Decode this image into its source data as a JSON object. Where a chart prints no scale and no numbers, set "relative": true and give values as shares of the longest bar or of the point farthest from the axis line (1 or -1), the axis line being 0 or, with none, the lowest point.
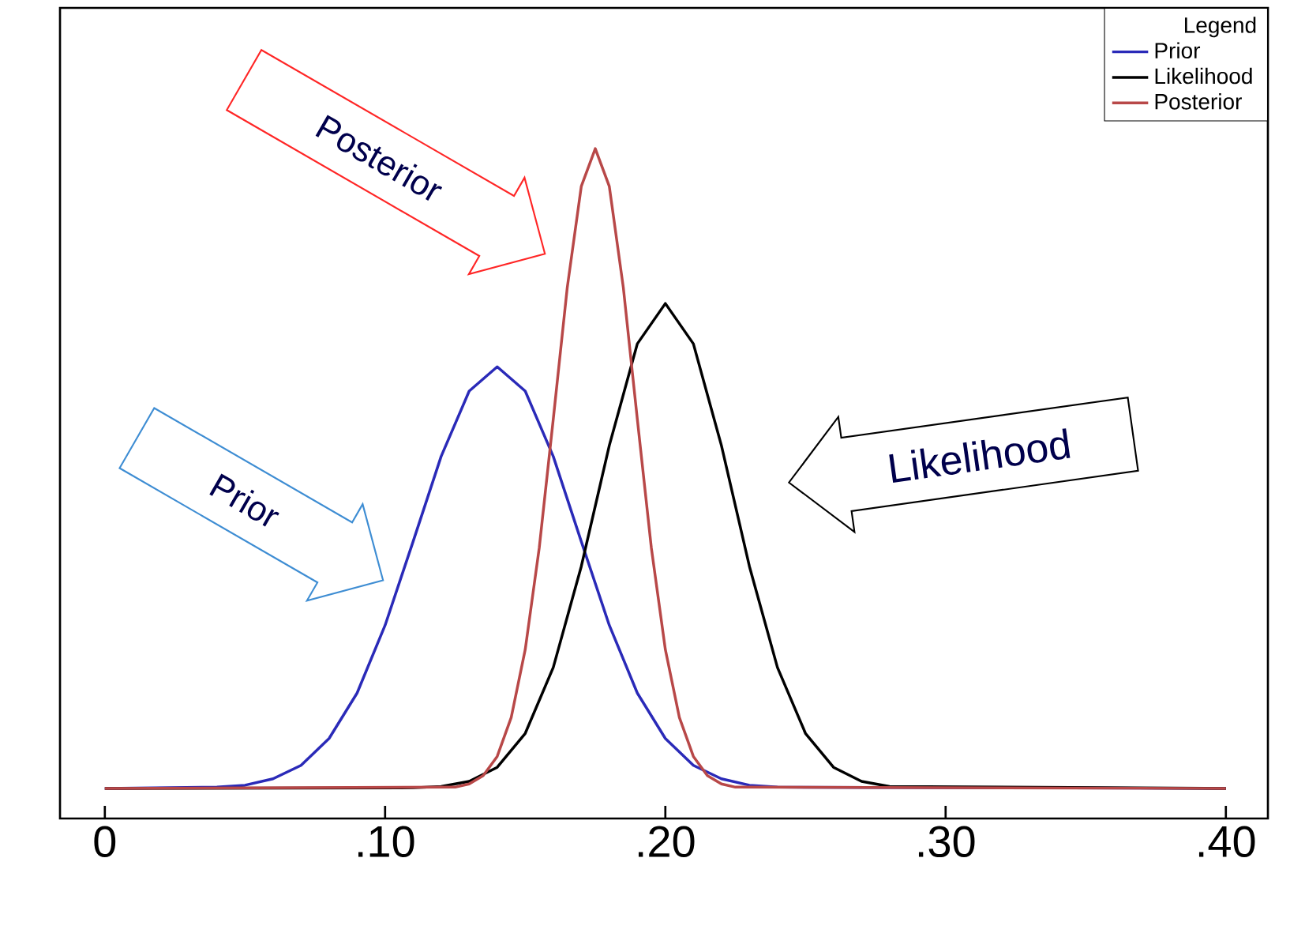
{
  "chart_data": {
    "type": "line",
    "relative": true,
    "legend_title": "Legend",
    "legend": "top right",
    "xlim": [
      -0.016,
      0.415
    ],
    "xticks": [
      {
        "value": 0,
        "label": "0"
      },
      {
        "value": 0.1,
        "label": ".10"
      },
      {
        "value": 0.2,
        "label": ".20"
      },
      {
        "value": 0.3,
        "label": ".30"
      },
      {
        "value": 0.4,
        "label": ".40"
      }
    ],
    "annotations": [
      "Posterior",
      "Prior",
      "Likelihood"
    ],
    "series": [
      {
        "name": "Prior",
        "color": "#2a2ab8",
        "x": [
          0,
          0.04,
          0.05,
          0.06,
          0.07,
          0.08,
          0.09,
          0.1,
          0.11,
          0.12,
          0.13,
          0.14,
          0.15,
          0.16,
          0.17,
          0.18,
          0.19,
          0.2,
          0.21,
          0.22,
          0.23,
          0.24,
          0.4
        ],
        "values": [
          0,
          0.002,
          0.005,
          0.015,
          0.036,
          0.078,
          0.149,
          0.255,
          0.386,
          0.519,
          0.621,
          0.659,
          0.621,
          0.519,
          0.386,
          0.255,
          0.149,
          0.078,
          0.036,
          0.015,
          0.005,
          0.002,
          0
        ]
      },
      {
        "name": "Likelihood",
        "color": "#000000",
        "x": [
          0,
          0.11,
          0.12,
          0.13,
          0.14,
          0.15,
          0.16,
          0.17,
          0.18,
          0.19,
          0.2,
          0.21,
          0.22,
          0.23,
          0.24,
          0.25,
          0.26,
          0.27,
          0.28,
          0.29,
          0.4
        ],
        "values": [
          0,
          0.001,
          0.003,
          0.011,
          0.033,
          0.086,
          0.189,
          0.347,
          0.536,
          0.695,
          0.758,
          0.695,
          0.536,
          0.347,
          0.189,
          0.086,
          0.033,
          0.011,
          0.003,
          null,
          0
        ]
      },
      {
        "name": "Posterior",
        "color": "#b84848",
        "x": [
          0,
          0.125,
          0.13,
          0.135,
          0.14,
          0.145,
          0.15,
          0.155,
          0.16,
          0.165,
          0.17,
          0.175,
          0.18,
          0.185,
          0.19,
          0.195,
          0.2,
          0.205,
          0.21,
          0.215,
          0.22,
          0.225,
          0.4
        ],
        "values": [
          0,
          0.002,
          0.007,
          0.02,
          0.05,
          0.111,
          0.217,
          0.376,
          0.577,
          0.783,
          0.941,
          1,
          0.941,
          0.783,
          0.577,
          0.376,
          0.217,
          0.111,
          0.05,
          0.02,
          0.007,
          0.002,
          0
        ]
      }
    ]
  }
}
